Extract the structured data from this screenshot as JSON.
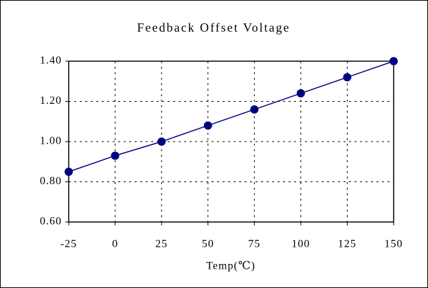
{
  "chart_data": {
    "type": "line",
    "title": "Feedback Offset Voltage",
    "xlabel": "Temp(℃)",
    "x": [
      -25,
      0,
      25,
      50,
      75,
      100,
      125,
      150
    ],
    "series": [
      {
        "color": "#000080",
        "values": [
          0.85,
          0.93,
          1.0,
          1.08,
          1.16,
          1.24,
          1.32,
          1.4
        ]
      }
    ],
    "xlim": [
      -25,
      150
    ],
    "xticks": [
      -25,
      0,
      25,
      50,
      75,
      100,
      125,
      150
    ],
    "ylim": [
      0.6,
      1.4
    ],
    "yticks": [
      {
        "value": 0.6,
        "label": "0.60"
      },
      {
        "value": 0.8,
        "label": "0.80"
      },
      {
        "value": 1.0,
        "label": "1.00"
      },
      {
        "value": 1.2,
        "label": "1.20"
      },
      {
        "value": 1.4,
        "label": "1.40"
      }
    ],
    "grid": true
  }
}
